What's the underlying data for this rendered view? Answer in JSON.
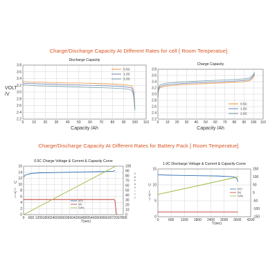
{
  "page": {
    "title_cell": "Charge/Discharge Capacity At Different Rates for cell [ Room Temperatue]",
    "title_pack": "Charge/Discharge Capacity At Different Rates for Battery Pack [ Room Temperatue]",
    "colors": {
      "title": "#d9521f"
    }
  },
  "chart_data": [
    {
      "id": "discharge",
      "type": "line",
      "title": "Discharge Capacity",
      "xlabel": "Capacity /Ah",
      "ylabel": "VOLT /V",
      "xlim": [
        0,
        110
      ],
      "ylim": [
        2.2,
        3.8
      ],
      "xticks": [
        "0",
        "10",
        "20",
        "30",
        "40",
        "50",
        "60",
        "70",
        "80",
        "90",
        "100",
        "110"
      ],
      "yticks": [
        "2.2",
        "2.4",
        "2.6",
        "2.8",
        "3.0",
        "3.2",
        "3.4",
        "3.6",
        "3.8"
      ],
      "legend": "top-right",
      "series": [
        {
          "name": "0.5C",
          "color": "#e8903a",
          "x": [
            0,
            2,
            5,
            10,
            20,
            30,
            40,
            50,
            60,
            70,
            80,
            90,
            95,
            97,
            98,
            99,
            100
          ],
          "y": [
            3.32,
            3.31,
            3.3,
            3.3,
            3.29,
            3.28,
            3.27,
            3.27,
            3.26,
            3.25,
            3.24,
            3.22,
            3.2,
            3.18,
            3.14,
            3.0,
            2.55
          ]
        },
        {
          "name": "1.0C",
          "color": "#6b80b5",
          "x": [
            0,
            2,
            5,
            10,
            20,
            30,
            40,
            50,
            60,
            70,
            80,
            90,
            95,
            97,
            98,
            99,
            100
          ],
          "y": [
            3.27,
            3.26,
            3.25,
            3.25,
            3.24,
            3.23,
            3.22,
            3.21,
            3.2,
            3.19,
            3.18,
            3.16,
            3.14,
            3.12,
            3.08,
            2.95,
            2.5
          ]
        },
        {
          "name": "2.0C",
          "color": "#6f9aa8",
          "x": [
            0,
            2,
            5,
            10,
            20,
            30,
            40,
            50,
            60,
            70,
            80,
            90,
            95,
            97,
            98,
            99,
            100
          ],
          "y": [
            3.22,
            3.21,
            3.2,
            3.19,
            3.18,
            3.17,
            3.16,
            3.15,
            3.14,
            3.13,
            3.12,
            3.1,
            3.08,
            3.05,
            3.0,
            2.85,
            2.45
          ]
        }
      ]
    },
    {
      "id": "charge",
      "type": "line",
      "title": "Charge Capacity",
      "xlabel": "Capacity /Ah",
      "ylabel": "",
      "xlim": [
        0,
        110
      ],
      "ylim": [
        2.2,
        3.8
      ],
      "xticks": [
        "0",
        "10",
        "20",
        "30",
        "40",
        "50",
        "60",
        "70",
        "80",
        "90",
        "100",
        "110"
      ],
      "yticks": [
        "2.2",
        "2.4",
        "2.6",
        "2.8",
        "3.0",
        "3.2",
        "3.4",
        "3.6",
        "3.8"
      ],
      "legend": "bottom-right",
      "series": [
        {
          "name": "0.5C",
          "color": "#e8903a",
          "x": [
            0,
            0.5,
            1,
            2,
            4,
            8,
            15,
            25,
            35,
            50,
            65,
            80,
            90,
            96,
            98,
            100,
            101
          ],
          "y": [
            2.85,
            3.05,
            3.15,
            3.2,
            3.23,
            3.26,
            3.28,
            3.3,
            3.32,
            3.34,
            3.36,
            3.38,
            3.4,
            3.43,
            3.48,
            3.55,
            3.62
          ]
        },
        {
          "name": "1.0C",
          "color": "#6b80b5",
          "x": [
            0,
            0.5,
            1,
            2,
            4,
            8,
            15,
            25,
            35,
            50,
            65,
            80,
            90,
            96,
            98,
            100,
            101
          ],
          "y": [
            2.9,
            3.1,
            3.19,
            3.24,
            3.27,
            3.3,
            3.32,
            3.34,
            3.36,
            3.38,
            3.4,
            3.42,
            3.44,
            3.47,
            3.52,
            3.6,
            3.66
          ]
        },
        {
          "name": "2.0C",
          "color": "#6f9aa8",
          "x": [
            0,
            0.5,
            1,
            2,
            4,
            8,
            15,
            25,
            35,
            50,
            65,
            80,
            90,
            96,
            98,
            100,
            101
          ],
          "y": [
            2.95,
            3.15,
            3.24,
            3.29,
            3.32,
            3.35,
            3.37,
            3.39,
            3.41,
            3.43,
            3.45,
            3.47,
            3.49,
            3.52,
            3.57,
            3.64,
            3.7
          ]
        }
      ]
    },
    {
      "id": "pack-charge",
      "type": "line",
      "title": "0.5C Charge Voltage & Current & Capacity Curve",
      "xlabel": "T(sec)",
      "xlim": [
        0,
        7800
      ],
      "xticks": [
        "0",
        "600",
        "1200",
        "1800",
        "2400",
        "3000",
        "3600",
        "4200",
        "4800",
        "5400",
        "6000",
        "6600",
        "7200",
        "7800"
      ],
      "ylim_left": [
        0,
        16
      ],
      "yticks_left": [
        "0",
        "2",
        "4",
        "6",
        "8",
        "10",
        "12",
        "14",
        "16"
      ],
      "ylabel_left": "U (V)",
      "ylim_right": [
        0,
        100
      ],
      "yticks_right": [
        "0",
        "10",
        "20",
        "30",
        "40",
        "50",
        "60",
        "70",
        "80",
        "90",
        "100"
      ],
      "ylabel_right": "CAPACITY",
      "legend": "bottom-center",
      "series": [
        {
          "name": "U(V)",
          "color": "#2b6fb0",
          "axis": "left",
          "x": [
            0,
            150,
            300,
            600,
            1200,
            2400,
            3600,
            4800,
            6000,
            6600,
            7000,
            7150
          ],
          "y": [
            12.4,
            13.1,
            13.3,
            13.6,
            13.8,
            13.9,
            14.0,
            14.1,
            14.2,
            14.25,
            14.3,
            14.6
          ]
        },
        {
          "name": "I(A)",
          "color": "#c0392b",
          "axis": "left",
          "x": [
            0,
            7100,
            7150,
            7250,
            7300
          ],
          "y": [
            5.0,
            5.0,
            4.6,
            0.5,
            0
          ]
        },
        {
          "name": "C(Ah)",
          "color": "#9ab83a",
          "axis": "right",
          "x": [
            0,
            7200
          ],
          "y": [
            0,
            100
          ]
        }
      ]
    },
    {
      "id": "pack-discharge",
      "type": "line",
      "title": "1.0C Discharge Voltage & Current & Capacity Curve",
      "xlabel": "T(sec)",
      "xlim": [
        0,
        4200
      ],
      "xticks": [
        "0",
        "600",
        "1200",
        "1800",
        "2400",
        "3000",
        "3600",
        "4200"
      ],
      "ylim_left": [
        0,
        15
      ],
      "yticks_left": [
        "0",
        "5",
        "10",
        "15"
      ],
      "ylabel_left": "U (V)",
      "ylim_right": [
        -150,
        150
      ],
      "yticks_right": [
        "-150",
        "-100",
        "-50",
        "0",
        "50",
        "100",
        "150"
      ],
      "legend": "right",
      "series": [
        {
          "name": "U(V)",
          "color": "#2b6fb0",
          "axis": "left",
          "x": [
            0,
            300,
            900,
            1800,
            2700,
            3300,
            3500,
            3580,
            3620
          ],
          "y": [
            13.2,
            13.1,
            13.0,
            12.9,
            12.8,
            12.6,
            12.4,
            11.9,
            11.0
          ]
        },
        {
          "name": "I(A)",
          "color": "#c0392b",
          "axis": "left",
          "x": [
            0,
            3620
          ],
          "y": [
            1.5,
            1.5
          ]
        },
        {
          "name": "C(Ah)",
          "color": "#9ab83a",
          "axis": "right",
          "x": [
            0,
            3620
          ],
          "y": [
            -10,
            100
          ]
        }
      ]
    }
  ]
}
